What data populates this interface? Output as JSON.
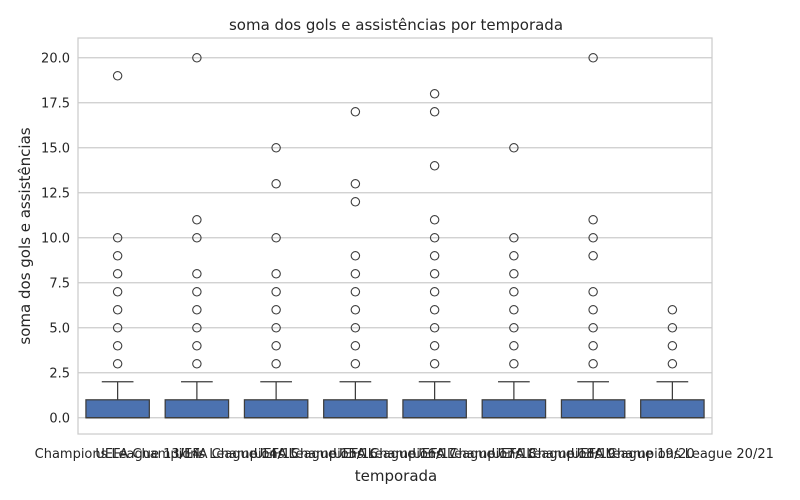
{
  "chart_data": {
    "type": "box",
    "title": "soma dos gols e assistências por temporada",
    "xlabel": "temporada",
    "ylabel": "soma dos gols e assistências",
    "ylim": [
      -0.9,
      21.1
    ],
    "yticks": [
      "0.0",
      "2.5",
      "5.0",
      "7.5",
      "10.0",
      "12.5",
      "15.0",
      "17.5",
      "20.0"
    ],
    "grid": true,
    "box_color": "#4c72b0",
    "categories": [
      "Champions League 13/14",
      "UEFA Champions League 14/15",
      "UEFA Champions League 15/16",
      "UEFA Champions League 16/17",
      "UEFA Champions League 17/18",
      "UEFA Champions League 18/19",
      "UEFA Champions League 19/20",
      "UEFA Champions League 20/21"
    ],
    "series": [
      {
        "min": 0,
        "q1": 0,
        "median": 0,
        "q3": 1,
        "max": 2,
        "outliers": [
          3,
          4,
          5,
          6,
          7,
          8,
          9,
          10,
          19
        ]
      },
      {
        "min": 0,
        "q1": 0,
        "median": 0,
        "q3": 1,
        "max": 2,
        "outliers": [
          3,
          4,
          5,
          6,
          7,
          8,
          10,
          11,
          20
        ]
      },
      {
        "min": 0,
        "q1": 0,
        "median": 0,
        "q3": 1,
        "max": 2,
        "outliers": [
          3,
          4,
          5,
          6,
          7,
          8,
          10,
          13,
          15
        ]
      },
      {
        "min": 0,
        "q1": 0,
        "median": 0,
        "q3": 1,
        "max": 2,
        "outliers": [
          3,
          4,
          5,
          6,
          7,
          8,
          9,
          12,
          13,
          17
        ]
      },
      {
        "min": 0,
        "q1": 0,
        "median": 0,
        "q3": 1,
        "max": 2,
        "outliers": [
          3,
          4,
          5,
          6,
          7,
          8,
          9,
          10,
          11,
          14,
          17,
          18
        ]
      },
      {
        "min": 0,
        "q1": 0,
        "median": 0,
        "q3": 1,
        "max": 2,
        "outliers": [
          3,
          4,
          5,
          6,
          7,
          8,
          9,
          10,
          15
        ]
      },
      {
        "min": 0,
        "q1": 0,
        "median": 0,
        "q3": 1,
        "max": 2,
        "outliers": [
          3,
          4,
          5,
          6,
          7,
          9,
          10,
          11,
          20
        ]
      },
      {
        "min": 0,
        "q1": 0,
        "median": 0,
        "q3": 1,
        "max": 2,
        "outliers": [
          3,
          4,
          5,
          6
        ]
      }
    ]
  }
}
